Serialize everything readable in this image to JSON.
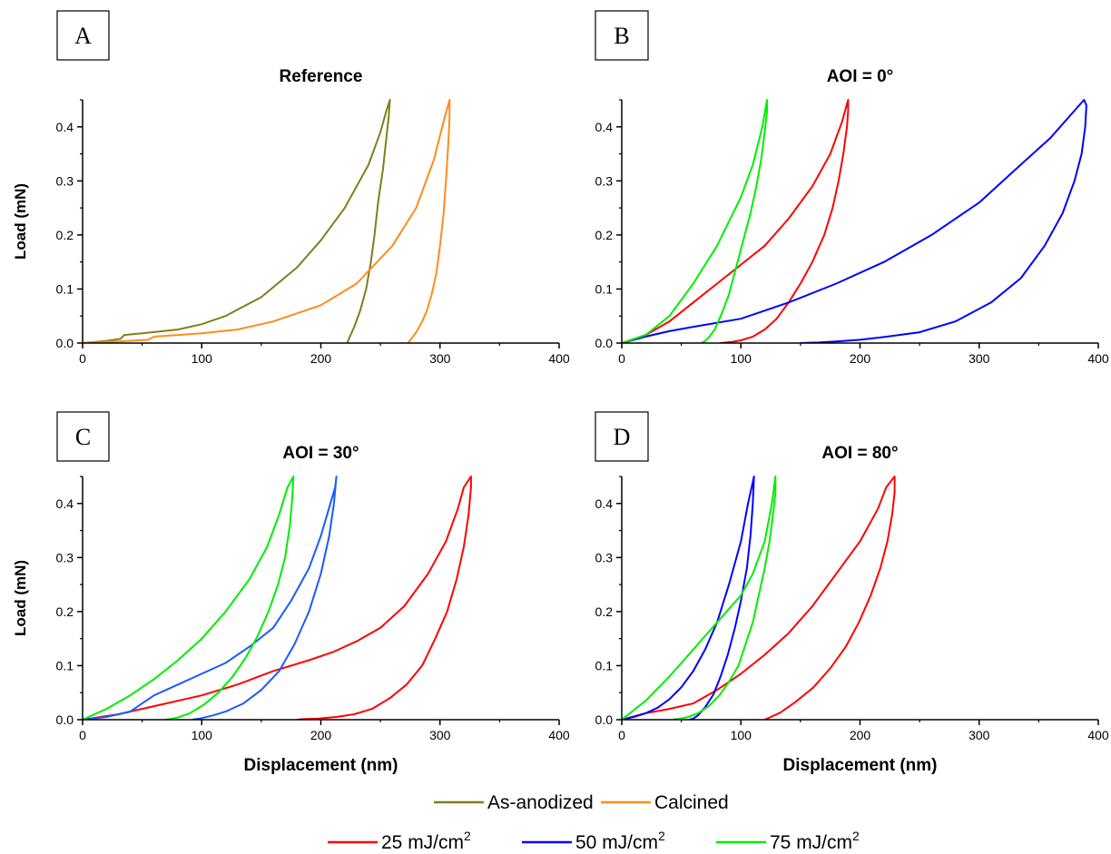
{
  "chart_data": [
    {
      "type": "line",
      "panel_label": "A",
      "title": "Reference",
      "xlabel": "",
      "ylabel": "Load (mN)",
      "xlim": [
        0,
        400
      ],
      "ylim": [
        0,
        0.45
      ],
      "xticks": [
        "0",
        "100",
        "200",
        "300",
        "400"
      ],
      "yticks": [
        "0.0",
        "0.1",
        "0.2",
        "0.3",
        "0.4"
      ],
      "series": [
        {
          "name": "As-anodized",
          "color": "#7f7f1a",
          "x": [
            0,
            20,
            32,
            35,
            50,
            80,
            100,
            120,
            150,
            180,
            200,
            220,
            240,
            250,
            255,
            258,
            257,
            255,
            252,
            248,
            245,
            242,
            238,
            233,
            228,
            224,
            222
          ],
          "y": [
            0,
            0.004,
            0.008,
            0.015,
            0.018,
            0.025,
            0.035,
            0.05,
            0.085,
            0.14,
            0.19,
            0.25,
            0.33,
            0.39,
            0.43,
            0.45,
            0.42,
            0.38,
            0.32,
            0.26,
            0.2,
            0.15,
            0.1,
            0.06,
            0.03,
            0.01,
            0
          ]
        },
        {
          "name": "Calcined",
          "color": "#ff8c1a",
          "x": [
            0,
            30,
            55,
            60,
            80,
            100,
            130,
            160,
            200,
            230,
            260,
            280,
            295,
            303,
            308,
            308,
            307,
            305,
            303,
            300,
            297,
            293,
            289,
            285,
            280,
            276,
            273
          ],
          "y": [
            0,
            0.003,
            0.006,
            0.012,
            0.015,
            0.018,
            0.025,
            0.04,
            0.07,
            0.11,
            0.18,
            0.25,
            0.34,
            0.41,
            0.45,
            0.42,
            0.37,
            0.3,
            0.24,
            0.18,
            0.13,
            0.09,
            0.06,
            0.04,
            0.02,
            0.008,
            0
          ]
        }
      ]
    },
    {
      "type": "line",
      "panel_label": "B",
      "title": "AOI = 0°",
      "xlabel": "",
      "ylabel": "",
      "xlim": [
        0,
        400
      ],
      "ylim": [
        0,
        0.45
      ],
      "xticks": [
        "0",
        "100",
        "200",
        "300",
        "400"
      ],
      "yticks": [
        "0.0",
        "0.1",
        "0.2",
        "0.3",
        "0.4"
      ],
      "series": [
        {
          "name": "25 mJ/cm²",
          "color": "#ff0000",
          "x": [
            0,
            20,
            40,
            60,
            80,
            100,
            120,
            140,
            160,
            175,
            185,
            190,
            190,
            189,
            186,
            182,
            177,
            170,
            160,
            150,
            140,
            130,
            120,
            110,
            100,
            92,
            88,
            83
          ],
          "y": [
            0,
            0.015,
            0.04,
            0.075,
            0.11,
            0.145,
            0.18,
            0.23,
            0.29,
            0.35,
            0.41,
            0.45,
            0.43,
            0.4,
            0.35,
            0.3,
            0.25,
            0.2,
            0.15,
            0.11,
            0.075,
            0.045,
            0.025,
            0.012,
            0.005,
            0.002,
            0.001,
            0
          ]
        },
        {
          "name": "50 mJ/cm²",
          "color": "#0000ff",
          "x": [
            0,
            20,
            40,
            60,
            100,
            140,
            180,
            220,
            260,
            300,
            330,
            360,
            380,
            388,
            390,
            389,
            386,
            380,
            370,
            355,
            335,
            310,
            280,
            250,
            220,
            200,
            180,
            165,
            150
          ],
          "y": [
            0,
            0.012,
            0.022,
            0.03,
            0.045,
            0.075,
            0.11,
            0.15,
            0.2,
            0.26,
            0.32,
            0.38,
            0.43,
            0.45,
            0.44,
            0.4,
            0.35,
            0.3,
            0.24,
            0.18,
            0.12,
            0.075,
            0.04,
            0.02,
            0.011,
            0.006,
            0.003,
            0.001,
            0
          ]
        },
        {
          "name": "75 mJ/cm²",
          "color": "#00ee00",
          "x": [
            0,
            20,
            40,
            60,
            80,
            100,
            110,
            118,
            122,
            122,
            120,
            117,
            113,
            108,
            102,
            96,
            90,
            84,
            78,
            73,
            70,
            67
          ],
          "y": [
            0,
            0.015,
            0.05,
            0.11,
            0.18,
            0.27,
            0.33,
            0.4,
            0.45,
            0.43,
            0.39,
            0.34,
            0.29,
            0.24,
            0.19,
            0.14,
            0.09,
            0.055,
            0.025,
            0.01,
            0.004,
            0
          ]
        }
      ]
    },
    {
      "type": "line",
      "panel_label": "C",
      "title": "AOI = 30°",
      "xlabel": "Displacement (nm)",
      "ylabel": "Load (mN)",
      "xlim": [
        0,
        400
      ],
      "ylim": [
        0,
        0.45
      ],
      "xticks": [
        "0",
        "100",
        "200",
        "300",
        "400"
      ],
      "yticks": [
        "0.0",
        "0.1",
        "0.2",
        "0.3",
        "0.4"
      ],
      "series": [
        {
          "name": "25 mJ/cm²",
          "color": "#ff0000",
          "x": [
            0,
            30,
            60,
            100,
            130,
            160,
            190,
            210,
            230,
            250,
            270,
            290,
            305,
            315,
            320,
            326,
            326,
            324,
            320,
            314,
            306,
            296,
            285,
            272,
            258,
            243,
            228,
            213,
            198,
            185,
            180
          ],
          "y": [
            0,
            0.01,
            0.025,
            0.045,
            0.065,
            0.09,
            0.11,
            0.125,
            0.145,
            0.17,
            0.21,
            0.27,
            0.33,
            0.39,
            0.43,
            0.45,
            0.43,
            0.38,
            0.32,
            0.26,
            0.2,
            0.15,
            0.1,
            0.065,
            0.04,
            0.02,
            0.01,
            0.005,
            0.002,
            0.001,
            0
          ]
        },
        {
          "name": "50 mJ/cm²",
          "color": "#1a5aff",
          "x": [
            0,
            20,
            40,
            50,
            60,
            80,
            100,
            120,
            140,
            160,
            175,
            190,
            200,
            208,
            212,
            213,
            211,
            207,
            200,
            190,
            178,
            165,
            150,
            135,
            120,
            108,
            98,
            92
          ],
          "y": [
            0,
            0.005,
            0.015,
            0.03,
            0.045,
            0.065,
            0.085,
            0.105,
            0.135,
            0.17,
            0.22,
            0.28,
            0.34,
            0.4,
            0.43,
            0.45,
            0.4,
            0.34,
            0.27,
            0.2,
            0.14,
            0.09,
            0.055,
            0.03,
            0.015,
            0.007,
            0.002,
            0
          ]
        },
        {
          "name": "75 mJ/cm²",
          "color": "#00ee00",
          "x": [
            0,
            20,
            40,
            60,
            80,
            100,
            120,
            140,
            155,
            165,
            172,
            177,
            176,
            174,
            170,
            164,
            156,
            147,
            137,
            126,
            114,
            102,
            90,
            80,
            73,
            69
          ],
          "y": [
            0,
            0.02,
            0.045,
            0.075,
            0.11,
            0.15,
            0.2,
            0.26,
            0.32,
            0.38,
            0.43,
            0.45,
            0.41,
            0.36,
            0.3,
            0.25,
            0.2,
            0.155,
            0.115,
            0.08,
            0.05,
            0.028,
            0.012,
            0.004,
            0.001,
            0
          ]
        }
      ]
    },
    {
      "type": "line",
      "panel_label": "D",
      "title": "AOI = 80°",
      "xlabel": "Displacement (nm)",
      "ylabel": "",
      "xlim": [
        0,
        400
      ],
      "ylim": [
        0,
        0.45
      ],
      "xticks": [
        "0",
        "100",
        "200",
        "300",
        "400"
      ],
      "yticks": [
        "0.0",
        "0.1",
        "0.2",
        "0.3",
        "0.4"
      ],
      "series": [
        {
          "name": "25 mJ/cm²",
          "color": "#ff0000",
          "x": [
            0,
            20,
            40,
            60,
            80,
            100,
            120,
            140,
            160,
            180,
            200,
            215,
            222,
            229,
            229,
            227,
            223,
            217,
            209,
            199,
            188,
            175,
            161,
            146,
            133,
            124,
            120
          ],
          "y": [
            0,
            0.012,
            0.02,
            0.03,
            0.055,
            0.085,
            0.12,
            0.16,
            0.21,
            0.27,
            0.33,
            0.39,
            0.43,
            0.45,
            0.42,
            0.38,
            0.33,
            0.28,
            0.23,
            0.18,
            0.135,
            0.095,
            0.06,
            0.033,
            0.013,
            0.004,
            0
          ]
        },
        {
          "name": "50 mJ/cm²",
          "color": "#0000ff",
          "x": [
            0,
            10,
            20,
            30,
            40,
            50,
            60,
            70,
            80,
            90,
            100,
            106,
            110,
            111,
            110,
            108,
            105,
            100,
            95,
            89,
            83,
            77,
            70,
            64,
            60,
            57
          ],
          "y": [
            0,
            0.005,
            0.012,
            0.022,
            0.038,
            0.06,
            0.09,
            0.13,
            0.18,
            0.25,
            0.33,
            0.4,
            0.44,
            0.45,
            0.4,
            0.34,
            0.28,
            0.22,
            0.17,
            0.12,
            0.08,
            0.047,
            0.023,
            0.008,
            0.002,
            0
          ]
        },
        {
          "name": "75 mJ/cm²",
          "color": "#00ee00",
          "x": [
            0,
            20,
            40,
            60,
            80,
            100,
            110,
            120,
            126,
            129,
            129,
            127,
            124,
            120,
            115,
            110,
            104,
            98,
            90,
            82,
            73,
            64,
            56,
            49,
            43
          ],
          "y": [
            0,
            0.035,
            0.08,
            0.13,
            0.18,
            0.23,
            0.27,
            0.33,
            0.4,
            0.45,
            0.42,
            0.38,
            0.33,
            0.28,
            0.23,
            0.18,
            0.14,
            0.1,
            0.07,
            0.045,
            0.025,
            0.012,
            0.005,
            0.002,
            0
          ]
        }
      ]
    }
  ],
  "legends": {
    "row1": [
      {
        "label": "As-anodized",
        "color": "#7f7f1a"
      },
      {
        "label": "Calcined",
        "color": "#ff8c1a"
      }
    ],
    "row2": [
      {
        "label": "25 mJ/cm",
        "sup": "2",
        "color": "#ff0000"
      },
      {
        "label": "50 mJ/cm",
        "sup": "2",
        "color": "#0000ff"
      },
      {
        "label": "75 mJ/cm",
        "sup": "2",
        "color": "#00ee00"
      }
    ]
  }
}
